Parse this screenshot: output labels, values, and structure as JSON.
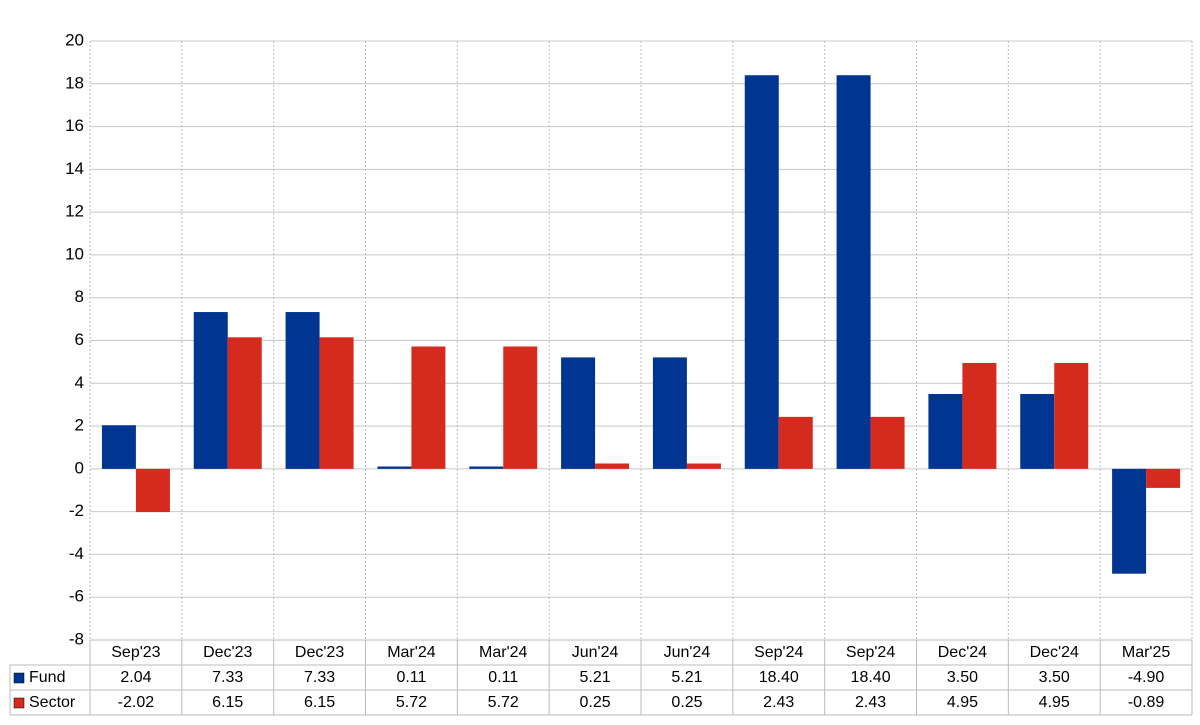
{
  "chart_data": {
    "type": "bar",
    "categories": [
      "Sep'23",
      "Dec'23",
      "Dec'23",
      "Mar'24",
      "Mar'24",
      "Jun'24",
      "Jun'24",
      "Sep'24",
      "Sep'24",
      "Dec'24",
      "Dec'24",
      "Mar'25"
    ],
    "series": [
      {
        "name": "Fund",
        "color": "#003591",
        "values": [
          2.04,
          7.33,
          7.33,
          0.11,
          0.11,
          5.21,
          5.21,
          18.4,
          18.4,
          3.5,
          3.5,
          -4.9
        ],
        "value_labels": [
          "2.04",
          "7.33",
          "7.33",
          "0.11",
          "0.11",
          "5.21",
          "5.21",
          "18.40",
          "18.40",
          "3.50",
          "3.50",
          "-4.90"
        ]
      },
      {
        "name": "Sector",
        "color": "#d52b1e",
        "values": [
          -2.02,
          6.15,
          6.15,
          5.72,
          5.72,
          0.25,
          0.25,
          2.43,
          2.43,
          4.95,
          4.95,
          -0.89
        ],
        "value_labels": [
          "-2.02",
          "6.15",
          "6.15",
          "5.72",
          "5.72",
          "0.25",
          "0.25",
          "2.43",
          "2.43",
          "4.95",
          "4.95",
          "-0.89"
        ]
      }
    ],
    "ylim": [
      -8,
      20
    ],
    "yticks": [
      -8,
      -6,
      -4,
      -2,
      0,
      2,
      4,
      6,
      8,
      10,
      12,
      14,
      16,
      18,
      20
    ],
    "grid": true,
    "negative_label_color": "#ff0000"
  }
}
